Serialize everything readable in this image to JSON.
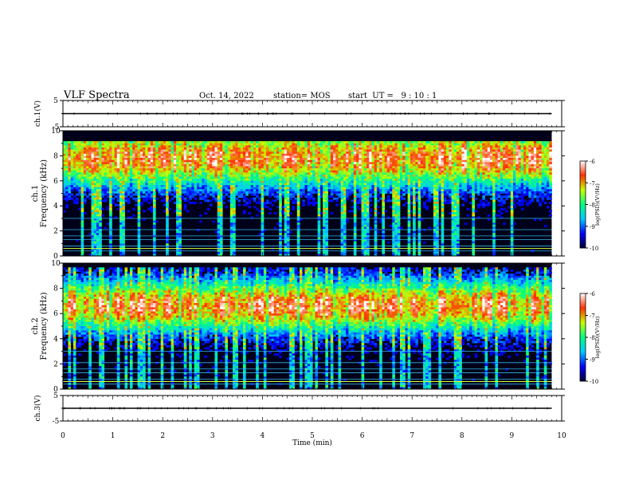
{
  "header": {
    "title": "VLF Spectra",
    "date": "Oct. 14, 2022",
    "station": "station= MOS",
    "start": "start  UT =   9 : 10 : 1"
  },
  "chart_data": {
    "type": "heatmap",
    "xlabel": "Time  (min)",
    "xlim": [
      0,
      10
    ],
    "xticks": [
      "0",
      "1",
      "2",
      "3",
      "4",
      "5",
      "6",
      "7",
      "8",
      "9",
      "10"
    ],
    "data_end_min": 9.8,
    "panels": [
      {
        "id": "ch1-waveform",
        "type": "line",
        "ylabel": "ch.1(V)",
        "ylim": [
          -5,
          5
        ],
        "yticks": [
          "5",
          "-5"
        ],
        "level": 0
      },
      {
        "id": "ch1-spectrogram",
        "type": "heatmap",
        "ylabel_top": "ch.1",
        "ylabel": "Frequency  (kHz)",
        "ylim": [
          0,
          10
        ],
        "yticks": [
          "0",
          "2",
          "4",
          "6",
          "8",
          "10"
        ],
        "band_center_khz": 7.8,
        "band_halfwidth_khz": 2.2,
        "band_upper_edge_khz": 9.2,
        "colorbar": {
          "label": "log(PSD)(V²/Hz)",
          "ticks": [
            "-6",
            "-7",
            "-8",
            "-9",
            "-10"
          ],
          "range": [
            -10,
            -6
          ]
        }
      },
      {
        "id": "ch2-spectrogram",
        "type": "heatmap",
        "ylabel_top": "ch.2",
        "ylabel": "Frequency  (kHz)",
        "ylim": [
          0,
          10
        ],
        "yticks": [
          "0",
          "2",
          "4",
          "6",
          "8",
          "10"
        ],
        "band_center_khz": 6.6,
        "band_halfwidth_khz": 2.0,
        "band_upper_edge_khz": 9.6,
        "colorbar": {
          "label": "log(PSD)(V²/Hz)",
          "ticks": [
            "-6",
            "-7",
            "-8",
            "-9",
            "-10"
          ],
          "range": [
            -10,
            -6
          ]
        }
      },
      {
        "id": "ch3-waveform",
        "type": "line",
        "ylabel": "ch.3(V)",
        "ylim": [
          -5,
          5
        ],
        "yticks": [
          "5",
          "-5"
        ],
        "level": 0
      }
    ],
    "colormap": [
      "#000033",
      "#0000ff",
      "#00c8ff",
      "#00ff80",
      "#c8ff00",
      "#ff3000",
      "#ffffff"
    ]
  }
}
